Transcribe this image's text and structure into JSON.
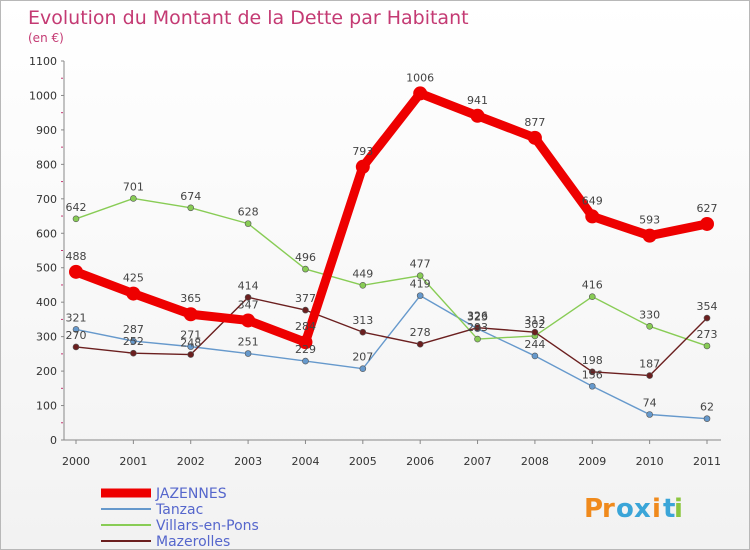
{
  "chart_data": {
    "type": "line",
    "title": "Evolution du Montant de la Dette par Habitant",
    "subtitle": "(en €)",
    "x": [
      "2000",
      "2001",
      "2002",
      "2003",
      "2004",
      "2005",
      "2006",
      "2007",
      "2008",
      "2009",
      "2010",
      "2011"
    ],
    "ylim": [
      0,
      1100
    ],
    "yticks": [
      0,
      100,
      200,
      300,
      400,
      500,
      600,
      700,
      800,
      900,
      1000,
      1100
    ],
    "grid": false,
    "legend_position": "bottom-left",
    "series": [
      {
        "name": "JAZENNES",
        "color": "#ee0000",
        "values": [
          488,
          425,
          365,
          347,
          284,
          793,
          1006,
          941,
          877,
          649,
          593,
          627
        ]
      },
      {
        "name": "Tanzac",
        "color": "#6699cc",
        "values": [
          321,
          287,
          271,
          251,
          229,
          207,
          419,
          323,
          244,
          156,
          74,
          62
        ]
      },
      {
        "name": "Villars-en-Pons",
        "color": "#88cc55",
        "values": [
          642,
          701,
          674,
          628,
          496,
          449,
          477,
          293,
          302,
          416,
          330,
          273
        ]
      },
      {
        "name": "Mazerolles",
        "color": "#6b1f1f",
        "values": [
          270,
          252,
          248,
          414,
          377,
          313,
          278,
          326,
          313,
          198,
          187,
          354
        ]
      }
    ],
    "data_labels": [
      {
        "series": 0,
        "i": 0,
        "text": "488"
      },
      {
        "series": 0,
        "i": 1,
        "text": "425"
      },
      {
        "series": 0,
        "i": 2,
        "text": "365"
      },
      {
        "series": 0,
        "i": 3,
        "text": "347"
      },
      {
        "series": 0,
        "i": 4,
        "text": "284"
      },
      {
        "series": 0,
        "i": 5,
        "text": "793"
      },
      {
        "series": 0,
        "i": 6,
        "text": "1006"
      },
      {
        "series": 0,
        "i": 7,
        "text": "941"
      },
      {
        "series": 0,
        "i": 8,
        "text": "877"
      },
      {
        "series": 0,
        "i": 9,
        "text": "649"
      },
      {
        "series": 0,
        "i": 10,
        "text": "593"
      },
      {
        "series": 0,
        "i": 11,
        "text": "627"
      },
      {
        "series": 1,
        "i": 0,
        "text": "321"
      },
      {
        "series": 1,
        "i": 1,
        "text": "287"
      },
      {
        "series": 1,
        "i": 2,
        "text": "271"
      },
      {
        "series": 1,
        "i": 3,
        "text": "251"
      },
      {
        "series": 1,
        "i": 4,
        "text": "229"
      },
      {
        "series": 1,
        "i": 5,
        "text": "207"
      },
      {
        "series": 1,
        "i": 6,
        "text": "419"
      },
      {
        "series": 1,
        "i": 7,
        "text": "323"
      },
      {
        "series": 1,
        "i": 8,
        "text": "244"
      },
      {
        "series": 1,
        "i": 9,
        "text": "156"
      },
      {
        "series": 1,
        "i": 10,
        "text": "74"
      },
      {
        "series": 1,
        "i": 11,
        "text": "62"
      },
      {
        "series": 2,
        "i": 0,
        "text": "642"
      },
      {
        "series": 2,
        "i": 1,
        "text": "701"
      },
      {
        "series": 2,
        "i": 2,
        "text": "674"
      },
      {
        "series": 2,
        "i": 3,
        "text": "628"
      },
      {
        "series": 2,
        "i": 4,
        "text": "496"
      },
      {
        "series": 2,
        "i": 5,
        "text": "449"
      },
      {
        "series": 2,
        "i": 6,
        "text": "477"
      },
      {
        "series": 2,
        "i": 7,
        "text": "293"
      },
      {
        "series": 2,
        "i": 8,
        "text": "302"
      },
      {
        "series": 2,
        "i": 9,
        "text": "416"
      },
      {
        "series": 2,
        "i": 10,
        "text": "330"
      },
      {
        "series": 2,
        "i": 11,
        "text": "273"
      },
      {
        "series": 3,
        "i": 0,
        "text": "270"
      },
      {
        "series": 3,
        "i": 1,
        "text": "252"
      },
      {
        "series": 3,
        "i": 2,
        "text": "248"
      },
      {
        "series": 3,
        "i": 3,
        "text": "414"
      },
      {
        "series": 3,
        "i": 4,
        "text": "377"
      },
      {
        "series": 3,
        "i": 5,
        "text": "313"
      },
      {
        "series": 3,
        "i": 6,
        "text": "278"
      },
      {
        "series": 3,
        "i": 7,
        "text": "326"
      },
      {
        "series": 3,
        "i": 8,
        "text": "313"
      },
      {
        "series": 3,
        "i": 9,
        "text": "198"
      },
      {
        "series": 3,
        "i": 10,
        "text": "187"
      },
      {
        "series": 3,
        "i": 11,
        "text": "354"
      }
    ]
  },
  "logo": {
    "text": "Proxiti",
    "letter_colors": [
      "#f08a1c",
      "#f08a1c",
      "#3aa5d8",
      "#3aa5d8",
      "#f08a1c",
      "#3aa5d8",
      "#8cc63f"
    ]
  }
}
